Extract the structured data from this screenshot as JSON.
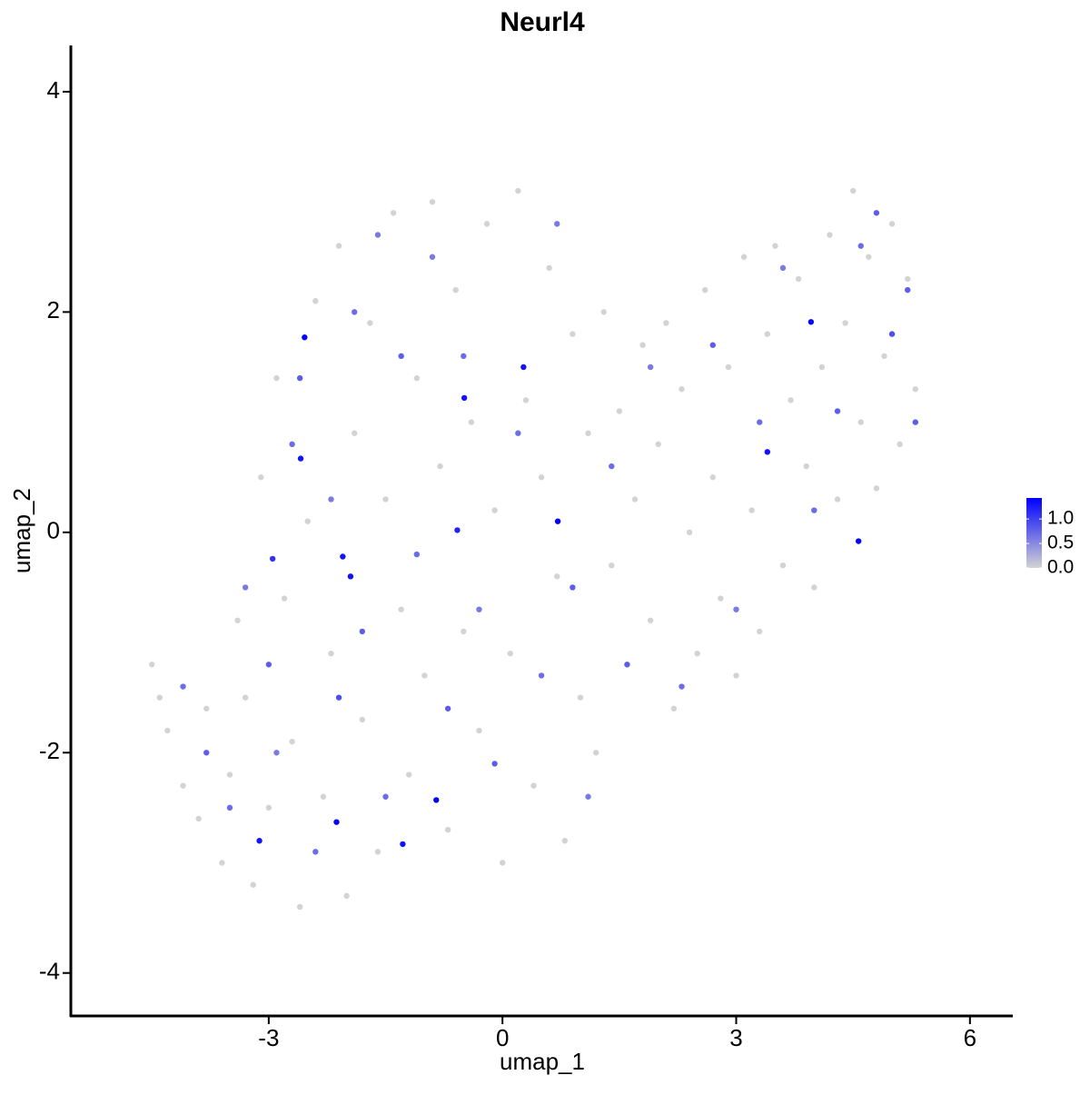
{
  "chart_data": {
    "type": "scatter",
    "title": "Neurl4",
    "x_label": "umap_1",
    "y_label": "umap_2",
    "xlim": [
      -5.54,
      6.55
    ],
    "ylim": [
      -4.39,
      4.42
    ],
    "xticks": [
      -3,
      0,
      3,
      6
    ],
    "yticks": [
      -4,
      -2,
      0,
      2,
      4
    ],
    "color_low": "#d3d3d3",
    "color_high": "#0000ff",
    "clim": [
      0,
      1.43
    ],
    "cticks": [
      {
        "value": 0,
        "label": "0.0"
      },
      {
        "value": 0.5,
        "label": "0.5"
      },
      {
        "value": 1,
        "label": "1.0"
      }
    ],
    "x": [
      -4.5,
      -4.4,
      -4.3,
      -4.1,
      -3.9,
      -3.8,
      -3.6,
      -3.5,
      -3.4,
      -3.3,
      -3.2,
      -3.1,
      -3.0,
      -2.9,
      -2.8,
      -2.7,
      -2.6,
      -2.5,
      -2.4,
      -2.3,
      -2.2,
      -2.1,
      -2.0,
      -1.9,
      -1.8,
      -1.7,
      -1.6,
      -1.5,
      -1.4,
      -1.3,
      -1.2,
      -1.1,
      -1.0,
      -0.9,
      -0.8,
      -0.7,
      -0.6,
      -0.5,
      -0.4,
      -0.3,
      -0.2,
      -0.1,
      0.0,
      0.1,
      0.2,
      0.3,
      0.4,
      0.5,
      0.6,
      0.7,
      0.8,
      0.9,
      1.0,
      1.1,
      1.2,
      1.3,
      1.4,
      1.5,
      1.6,
      1.7,
      1.8,
      1.9,
      2.0,
      2.1,
      2.2,
      2.3,
      2.4,
      2.5,
      2.6,
      2.7,
      2.8,
      2.9,
      3.0,
      3.1,
      3.2,
      3.3,
      3.4,
      3.5,
      3.6,
      3.7,
      3.8,
      3.9,
      4.0,
      4.1,
      4.2,
      4.3,
      4.4,
      4.5,
      4.6,
      4.7,
      4.8,
      4.9,
      5.0,
      5.1,
      5.2,
      5.3,
      -4.1,
      -3.8,
      -3.5,
      -3.3,
      -3.0,
      -2.9,
      -2.7,
      -2.6,
      -2.4,
      -2.2,
      -2.1,
      -1.9,
      -1.8,
      -1.6,
      -1.5,
      -1.3,
      -1.1,
      -0.9,
      -0.7,
      -0.5,
      -0.3,
      -0.1,
      0.2,
      0.5,
      0.7,
      0.9,
      1.1,
      1.4,
      1.6,
      1.9,
      2.3,
      2.7,
      3.0,
      3.3,
      3.6,
      4.0,
      4.3,
      4.6,
      5.0,
      5.2,
      5.3,
      4.8,
      -2.54,
      0.27,
      -0.49,
      -2.59,
      0.71,
      3.4,
      3.96,
      4.57,
      -2.95,
      -2.05,
      -1.95,
      -0.85,
      -1.28,
      -2.13,
      -3.12,
      -0.58
    ],
    "y": [
      -1.2,
      -1.5,
      -1.8,
      -2.3,
      -2.6,
      -1.6,
      -3.0,
      -2.2,
      -0.8,
      -1.5,
      -3.2,
      0.5,
      -2.5,
      1.4,
      -0.6,
      -1.9,
      -3.4,
      0.1,
      2.1,
      -2.4,
      -1.1,
      2.6,
      -3.3,
      0.9,
      -1.7,
      1.9,
      -2.9,
      0.3,
      2.9,
      -0.7,
      -2.2,
      1.4,
      -1.3,
      3.0,
      0.6,
      -2.7,
      2.2,
      -0.9,
      1.0,
      -1.8,
      2.8,
      0.2,
      -3.0,
      -1.1,
      3.1,
      1.2,
      -2.3,
      0.5,
      2.4,
      -0.4,
      -2.8,
      1.8,
      -1.5,
      0.9,
      -2.0,
      2.0,
      -0.3,
      1.1,
      -1.2,
      0.3,
      1.7,
      -0.8,
      0.8,
      1.9,
      -1.6,
      1.3,
      0.0,
      -1.1,
      2.2,
      0.5,
      -0.6,
      1.5,
      -1.3,
      2.5,
      0.2,
      -0.9,
      1.8,
      2.6,
      -0.3,
      1.2,
      2.3,
      0.6,
      -0.5,
      1.5,
      2.7,
      0.3,
      1.9,
      3.1,
      1.0,
      2.5,
      0.4,
      1.6,
      2.8,
      0.8,
      2.3,
      1.3,
      -1.4,
      -2.0,
      -2.5,
      -0.5,
      -1.2,
      -2.0,
      0.8,
      1.4,
      -2.9,
      0.3,
      -1.5,
      2.0,
      -0.9,
      2.7,
      -2.4,
      1.6,
      -0.2,
      2.5,
      -1.6,
      1.6,
      -0.7,
      -2.1,
      0.9,
      -1.3,
      2.8,
      -0.5,
      -2.4,
      0.6,
      -1.2,
      1.5,
      -1.4,
      1.7,
      -0.7,
      1.0,
      2.4,
      0.2,
      1.1,
      2.6,
      1.8,
      2.2,
      1.0,
      2.9,
      1.77,
      1.5,
      1.22,
      0.67,
      0.1,
      0.73,
      1.91,
      -0.08,
      -0.24,
      -0.22,
      -0.4,
      -2.43,
      -2.83,
      -2.63,
      -2.8,
      0.02
    ],
    "values": [
      0,
      0,
      0,
      0,
      0,
      0,
      0,
      0,
      0,
      0,
      0,
      0,
      0,
      0,
      0,
      0,
      0,
      0,
      0,
      0,
      0,
      0,
      0,
      0,
      0,
      0,
      0,
      0,
      0,
      0,
      0,
      0,
      0,
      0,
      0,
      0,
      0,
      0,
      0,
      0,
      0,
      0,
      0,
      0,
      0,
      0,
      0,
      0,
      0,
      0,
      0,
      0,
      0,
      0,
      0,
      0,
      0,
      0,
      0,
      0,
      0,
      0,
      0,
      0,
      0,
      0,
      0,
      0,
      0,
      0,
      0,
      0,
      0,
      0,
      0,
      0,
      0,
      0,
      0,
      0,
      0,
      0,
      0,
      0,
      0,
      0,
      0,
      0,
      0,
      0,
      0,
      0,
      0,
      0,
      0,
      0,
      0.7,
      0.8,
      0.7,
      0.6,
      0.8,
      0.6,
      0.7,
      0.8,
      0.7,
      0.6,
      0.9,
      0.7,
      0.8,
      0.6,
      0.7,
      0.8,
      0.7,
      0.6,
      0.8,
      0.7,
      0.6,
      0.8,
      0.7,
      0.7,
      0.6,
      0.8,
      0.6,
      0.7,
      0.8,
      0.6,
      0.7,
      0.8,
      0.6,
      0.7,
      0.6,
      0.7,
      0.8,
      0.7,
      0.9,
      0.8,
      0.8,
      0.8,
      1.4,
      1.3,
      1.3,
      1.3,
      1.4,
      1.3,
      1.4,
      1.4,
      1.1,
      1.3,
      1.3,
      1.4,
      1.3,
      1.4,
      1.3,
      1.2
    ]
  }
}
